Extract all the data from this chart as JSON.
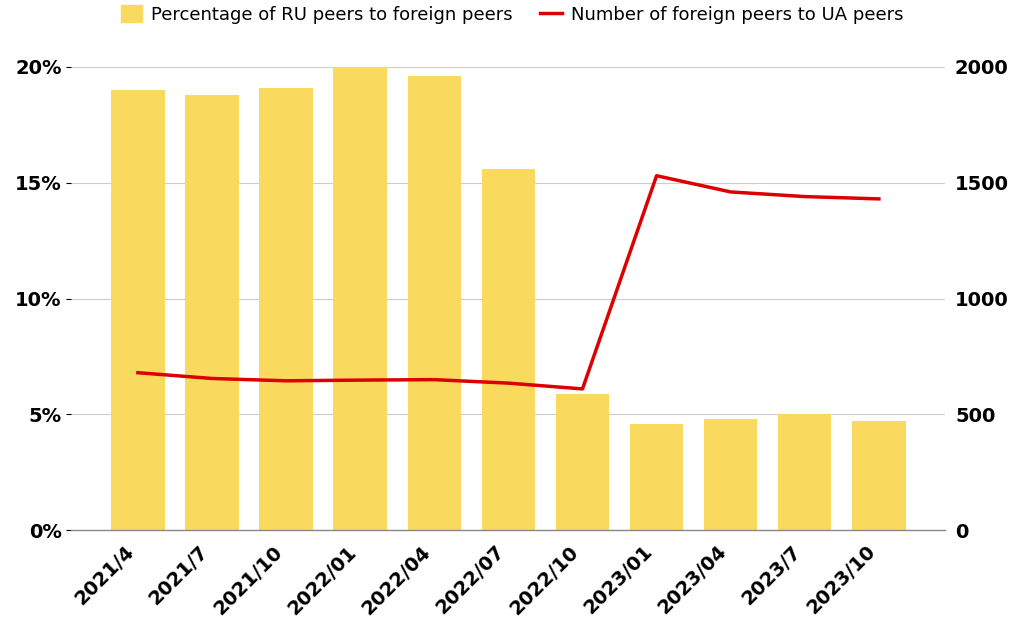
{
  "categories": [
    "2021/4",
    "2021/7",
    "2021/10",
    "2022/01",
    "2022/04",
    "2022/07",
    "2022/10",
    "2023/01",
    "2023/04",
    "2023/7",
    "2023/10"
  ],
  "bar_values": [
    0.19,
    0.188,
    0.191,
    0.2,
    0.196,
    0.156,
    0.059,
    0.046,
    0.048,
    0.05,
    0.047
  ],
  "line_values": [
    680,
    655,
    645,
    648,
    650,
    635,
    610,
    1530,
    1460,
    1440,
    1430
  ],
  "bar_color": "#FAD95F",
  "line_color": "#DD0000",
  "line_width": 2.5,
  "left_ylim": [
    0,
    0.2
  ],
  "right_ylim": [
    0,
    2000
  ],
  "left_yticks": [
    0.0,
    0.05,
    0.1,
    0.15,
    0.2
  ],
  "left_yticklabels": [
    "0%",
    "5%",
    "10%",
    "15%",
    "20%"
  ],
  "right_yticks": [
    0,
    500,
    1000,
    1500,
    2000
  ],
  "right_yticklabels": [
    "0",
    "500",
    "1000",
    "1500",
    "2000"
  ],
  "legend_bar_label": "Percentage of RU peers to foreign peers",
  "legend_line_label": "Number of foreign peers to UA peers",
  "background_color": "#ffffff",
  "grid_color": "#cccccc",
  "tick_label_fontsize": 14,
  "legend_fontsize": 13
}
